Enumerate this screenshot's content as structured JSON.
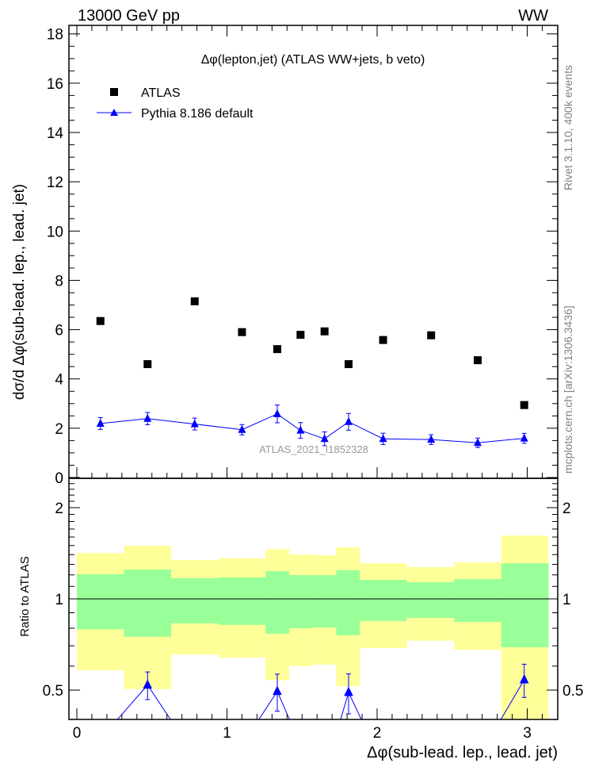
{
  "header": {
    "energy": "13000 GeV pp",
    "process": "WW"
  },
  "side": {
    "rivet": "Rivet 3.1.10,  400k events",
    "source": "mcplots.cern.ch [arXiv:1306.3436]"
  },
  "watermark": "ATLAS_2021_I1852328",
  "chart_data": [
    {
      "type": "scatter",
      "title": "Δφ(lepton,jet) (ATLAS WW+jets, b veto)",
      "ylabel": "dσ/d Δφ(sub-lead. lep., lead. jet)",
      "xlabel": "",
      "xlim": [
        -0.05,
        3.2
      ],
      "ylim": [
        0,
        18.35
      ],
      "yticks": [
        0,
        2,
        4,
        6,
        8,
        10,
        12,
        14,
        16,
        18
      ],
      "bin_edges": [
        0,
        0.314,
        0.628,
        0.942,
        1.257,
        1.414,
        1.571,
        1.728,
        1.885,
        2.199,
        2.513,
        2.827,
        3.142
      ],
      "x": [
        0.157,
        0.471,
        0.785,
        1.1,
        1.335,
        1.49,
        1.65,
        1.81,
        2.04,
        2.36,
        2.67,
        2.98
      ],
      "legend": [
        "ATLAS",
        "Pythia 8.186 default"
      ],
      "legend_position": "top-left",
      "series": [
        {
          "name": "ATLAS",
          "color": "#000000",
          "values": [
            6.35,
            4.6,
            7.15,
            5.9,
            5.21,
            5.79,
            5.93,
            4.6,
            5.58,
            5.77,
            4.76,
            2.94
          ]
        },
        {
          "name": "Pythia 8.186 default",
          "color": "#0000ff",
          "values": [
            2.19,
            2.39,
            2.17,
            1.94,
            2.58,
            1.91,
            1.57,
            2.26,
            1.57,
            1.54,
            1.41,
            1.59
          ],
          "errors": [
            0.24,
            0.25,
            0.24,
            0.21,
            0.36,
            0.32,
            0.28,
            0.34,
            0.23,
            0.2,
            0.19,
            0.2
          ]
        }
      ]
    },
    {
      "type": "line",
      "ylabel": "Ratio to ATLAS",
      "xlabel": "Δφ(sub-lead. lep., lead. jet)",
      "yscale": "log",
      "ylim": [
        0.4,
        2.5
      ],
      "yticks": [
        0.5,
        1,
        2
      ],
      "ytick_labels": [
        "0.5",
        "1",
        "2"
      ],
      "xticks": [
        0,
        1,
        2,
        3
      ],
      "xtick_labels": [
        "0",
        "1",
        "2",
        "3"
      ],
      "band_inner_color": "#99ff99",
      "band_outer_color": "#ffff99",
      "band_inner": {
        "low": [
          0.794,
          0.75,
          0.83,
          0.821,
          0.767,
          0.8,
          0.805,
          0.758,
          0.845,
          0.865,
          0.839,
          0.692
        ],
        "high": [
          1.206,
          1.25,
          1.17,
          1.177,
          1.235,
          1.198,
          1.198,
          1.243,
          1.156,
          1.135,
          1.163,
          1.31
        ]
      },
      "band_outer": {
        "low": [
          0.581,
          0.504,
          0.655,
          0.64,
          0.539,
          0.6,
          0.607,
          0.515,
          0.688,
          0.728,
          0.68,
          0.38
        ],
        "high": [
          1.416,
          1.498,
          1.344,
          1.36,
          1.46,
          1.4,
          1.393,
          1.48,
          1.31,
          1.273,
          1.32,
          1.617
        ]
      }
    }
  ]
}
